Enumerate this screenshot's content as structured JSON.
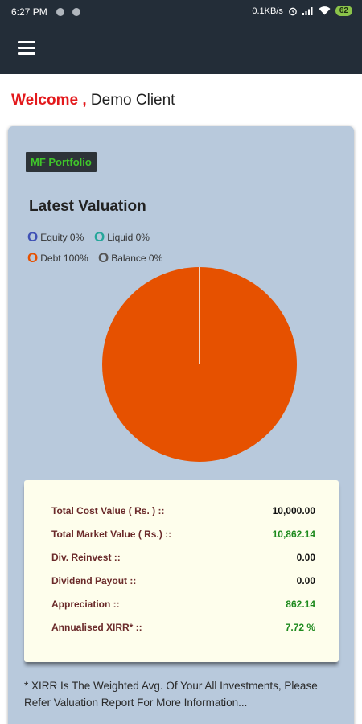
{
  "status_bar": {
    "time": "6:27 PM",
    "network_speed": "0.1KB/s",
    "battery": "62"
  },
  "welcome": {
    "label": "Welcome ,",
    "name": "Demo Client"
  },
  "portfolio": {
    "badge": "MF Portfolio",
    "title": "Latest Valuation",
    "legend": [
      {
        "symbol": "O",
        "label": "Equity 0%",
        "color": "#3f51b5"
      },
      {
        "symbol": "O",
        "label": "Liquid 0%",
        "color": "#26a69a"
      },
      {
        "symbol": "O",
        "label": "Debt 100%",
        "color": "#e65100"
      },
      {
        "symbol": "O",
        "label": "Balance 0%",
        "color": "#555555"
      }
    ]
  },
  "chart_data": {
    "type": "pie",
    "categories": [
      "Equity",
      "Liquid",
      "Debt",
      "Balance"
    ],
    "values": [
      0,
      0,
      100,
      0
    ],
    "colors": [
      "#3f51b5",
      "#26a69a",
      "#e65100",
      "#555555"
    ]
  },
  "valuation": {
    "rows": [
      {
        "label": "Total Cost Value ( Rs. ) ::",
        "value": "10,000.00",
        "highlight": false
      },
      {
        "label": "Total Market Value ( Rs.) ::",
        "value": "10,862.14",
        "highlight": true
      },
      {
        "label": "Div. Reinvest ::",
        "value": "0.00",
        "highlight": false
      },
      {
        "label": "Dividend Payout ::",
        "value": "0.00",
        "highlight": false
      },
      {
        "label": "Appreciation ::",
        "value": "862.14",
        "highlight": true
      },
      {
        "label": "Annualised XIRR* ::",
        "value": "7.72 %",
        "highlight": true
      }
    ]
  },
  "note": "* XIRR Is The Weighted Avg. Of Your All Investments, Please Refer Valuation Report For More Information..."
}
